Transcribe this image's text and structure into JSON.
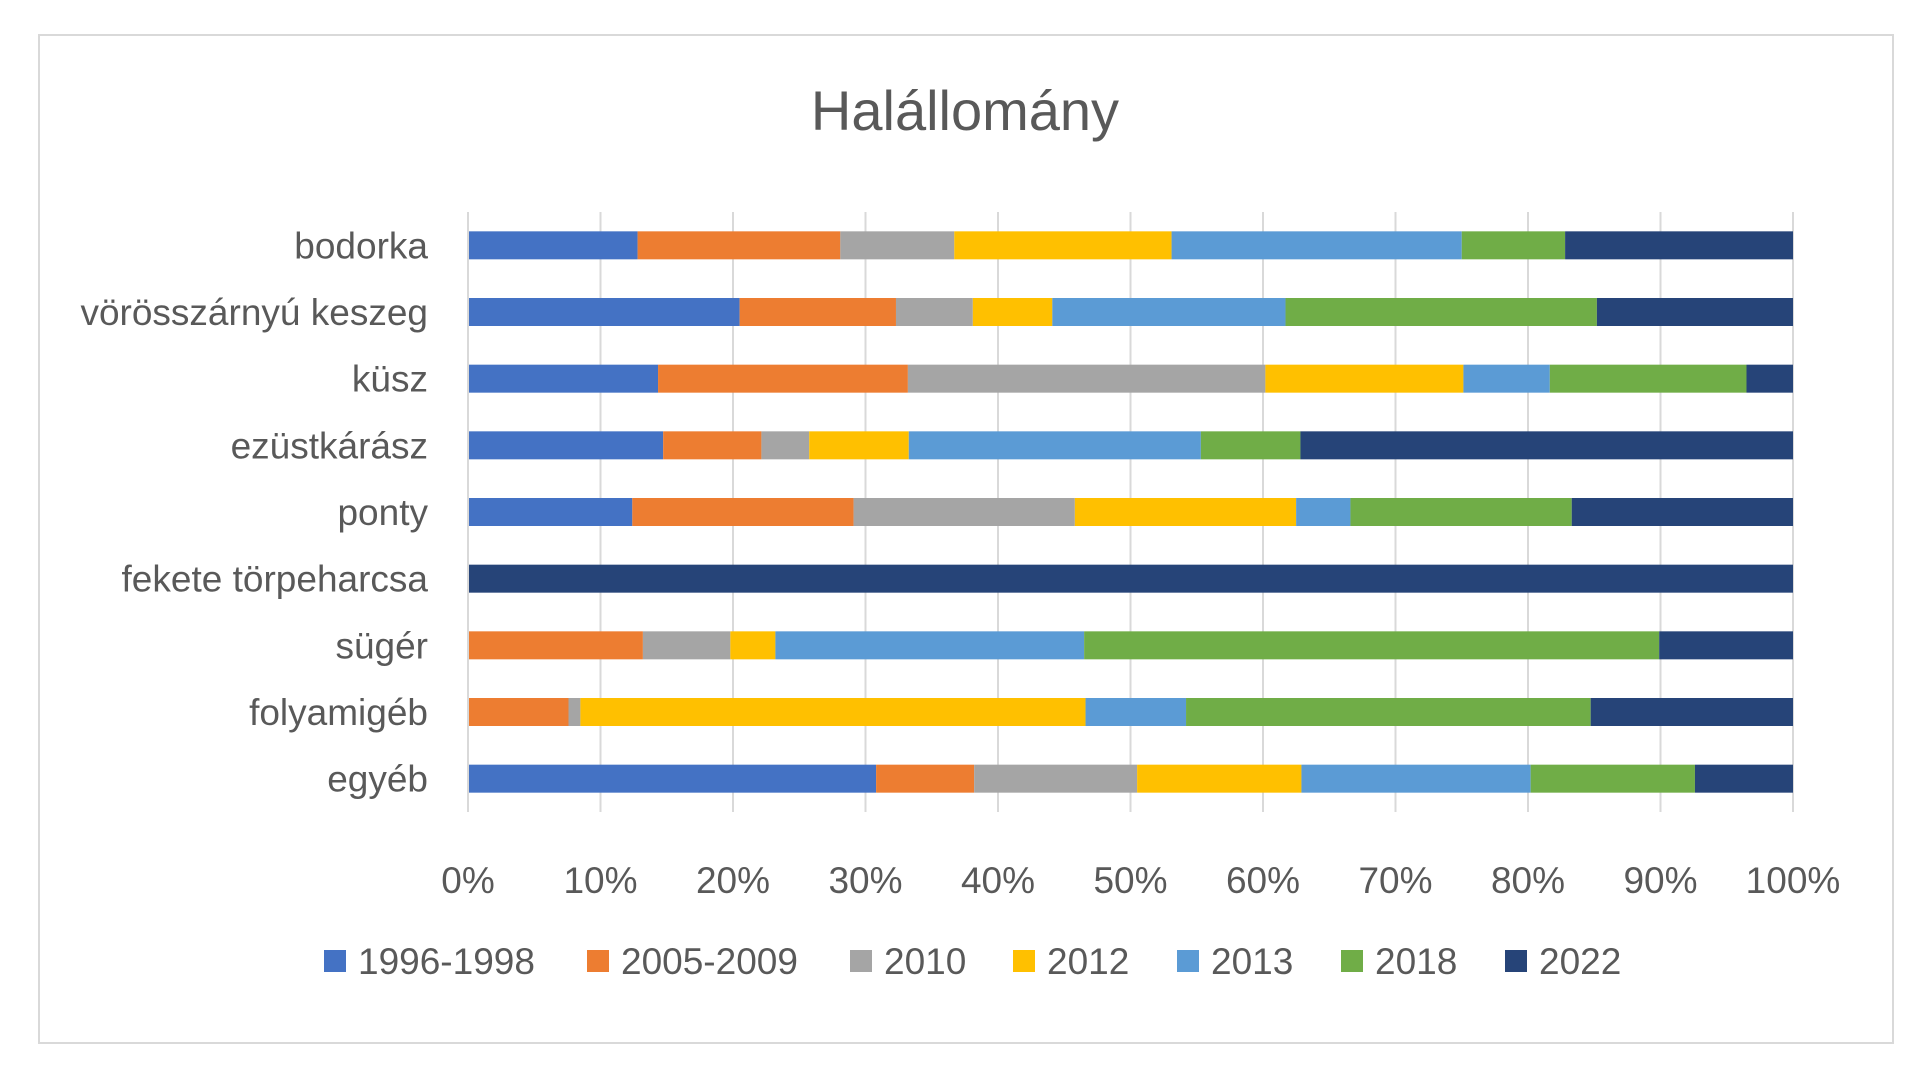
{
  "chart_data": {
    "type": "bar",
    "orientation": "horizontal",
    "stacked": "percent",
    "title": "Halállomány",
    "categories": [
      "bodorka",
      "vörösszárnyú keszeg",
      "küsz",
      "ezüstkárász",
      "ponty",
      "fekete törpeharcsa",
      "sügér",
      "folyamigéb",
      "egyéb"
    ],
    "series": [
      {
        "name": "1996-1998",
        "color": "#4472C4",
        "values": [
          12.8,
          20.5,
          14.3,
          14.7,
          12.4,
          0,
          0,
          0,
          30.8
        ]
      },
      {
        "name": "2005-2009",
        "color": "#ED7D31",
        "values": [
          15.3,
          11.8,
          18.8,
          7.4,
          16.7,
          0,
          13.2,
          7.6,
          7.4
        ]
      },
      {
        "name": "2010",
        "color": "#A5A5A5",
        "values": [
          8.6,
          5.8,
          26.9,
          3.6,
          16.7,
          0,
          6.6,
          0.9,
          12.3
        ]
      },
      {
        "name": "2012",
        "color": "#FFC000",
        "values": [
          16.4,
          6.0,
          14.9,
          7.5,
          16.7,
          0,
          3.4,
          38.2,
          12.4
        ]
      },
      {
        "name": "2013",
        "color": "#5B9BD5",
        "values": [
          21.9,
          17.6,
          6.5,
          22.0,
          4.1,
          0,
          23.3,
          7.6,
          17.3
        ]
      },
      {
        "name": "2018",
        "color": "#70AD47",
        "values": [
          7.8,
          23.5,
          14.8,
          7.5,
          16.7,
          0,
          43.4,
          30.6,
          12.4
        ]
      },
      {
        "name": "2022",
        "color": "#264478",
        "values": [
          17.2,
          14.8,
          3.5,
          37.1,
          16.7,
          100,
          10.1,
          15.3,
          7.4
        ]
      }
    ],
    "xlim": [
      0,
      100
    ],
    "xticks": [
      "0%",
      "10%",
      "20%",
      "30%",
      "40%",
      "50%",
      "60%",
      "70%",
      "80%",
      "90%",
      "100%"
    ],
    "grid": true,
    "legend_position": "bottom"
  }
}
